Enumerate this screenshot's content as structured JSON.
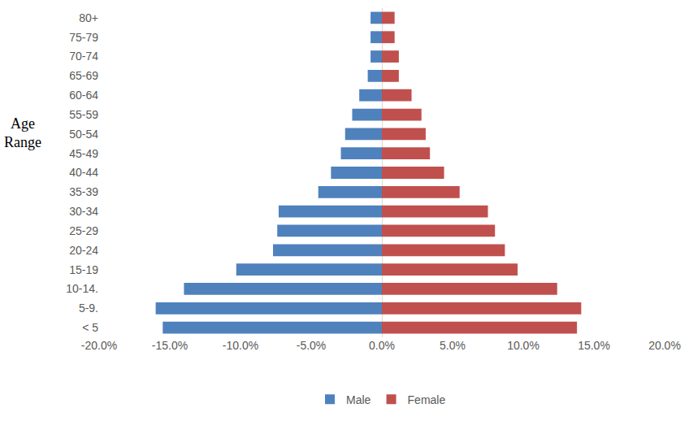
{
  "chart_data": {
    "type": "bar",
    "orientation": "horizontal",
    "y_label": "Age Range",
    "categories": [
      "< 5",
      "5-9.",
      "10-14.",
      "15-19",
      "20-24",
      "25-29",
      "30-34",
      "35-39",
      "40-44",
      "45-49",
      "50-54",
      "55-59",
      "60-64",
      "65-69",
      "70-74",
      "75-79",
      "80+"
    ],
    "series": [
      {
        "name": "Male",
        "color": "#4f81bd",
        "values": [
          -15.5,
          -16.0,
          -14.0,
          -10.3,
          -7.7,
          -7.4,
          -7.3,
          -4.5,
          -3.6,
          -2.9,
          -2.6,
          -2.1,
          -1.6,
          -1.0,
          -0.8,
          -0.8,
          -0.8
        ]
      },
      {
        "name": "Female",
        "color": "#c0504d",
        "values": [
          13.8,
          14.1,
          12.4,
          9.6,
          8.7,
          8.0,
          7.5,
          5.5,
          4.4,
          3.4,
          3.1,
          2.8,
          2.1,
          1.2,
          1.2,
          0.9,
          0.9
        ]
      }
    ],
    "xlim": [
      -20,
      20
    ],
    "xticks": [
      {
        "value": -20,
        "label": "-20.0%"
      },
      {
        "value": -15,
        "label": "-15.0%"
      },
      {
        "value": -10,
        "label": "-10.0%"
      },
      {
        "value": -5,
        "label": "-5.0%"
      },
      {
        "value": 0,
        "label": "0.0%"
      },
      {
        "value": 5,
        "label": "5.0%"
      },
      {
        "value": 10,
        "label": "10.0%"
      },
      {
        "value": 15,
        "label": "15.0%"
      },
      {
        "value": 20,
        "label": "20.0%"
      }
    ],
    "grid": false,
    "legend": "bottom"
  }
}
